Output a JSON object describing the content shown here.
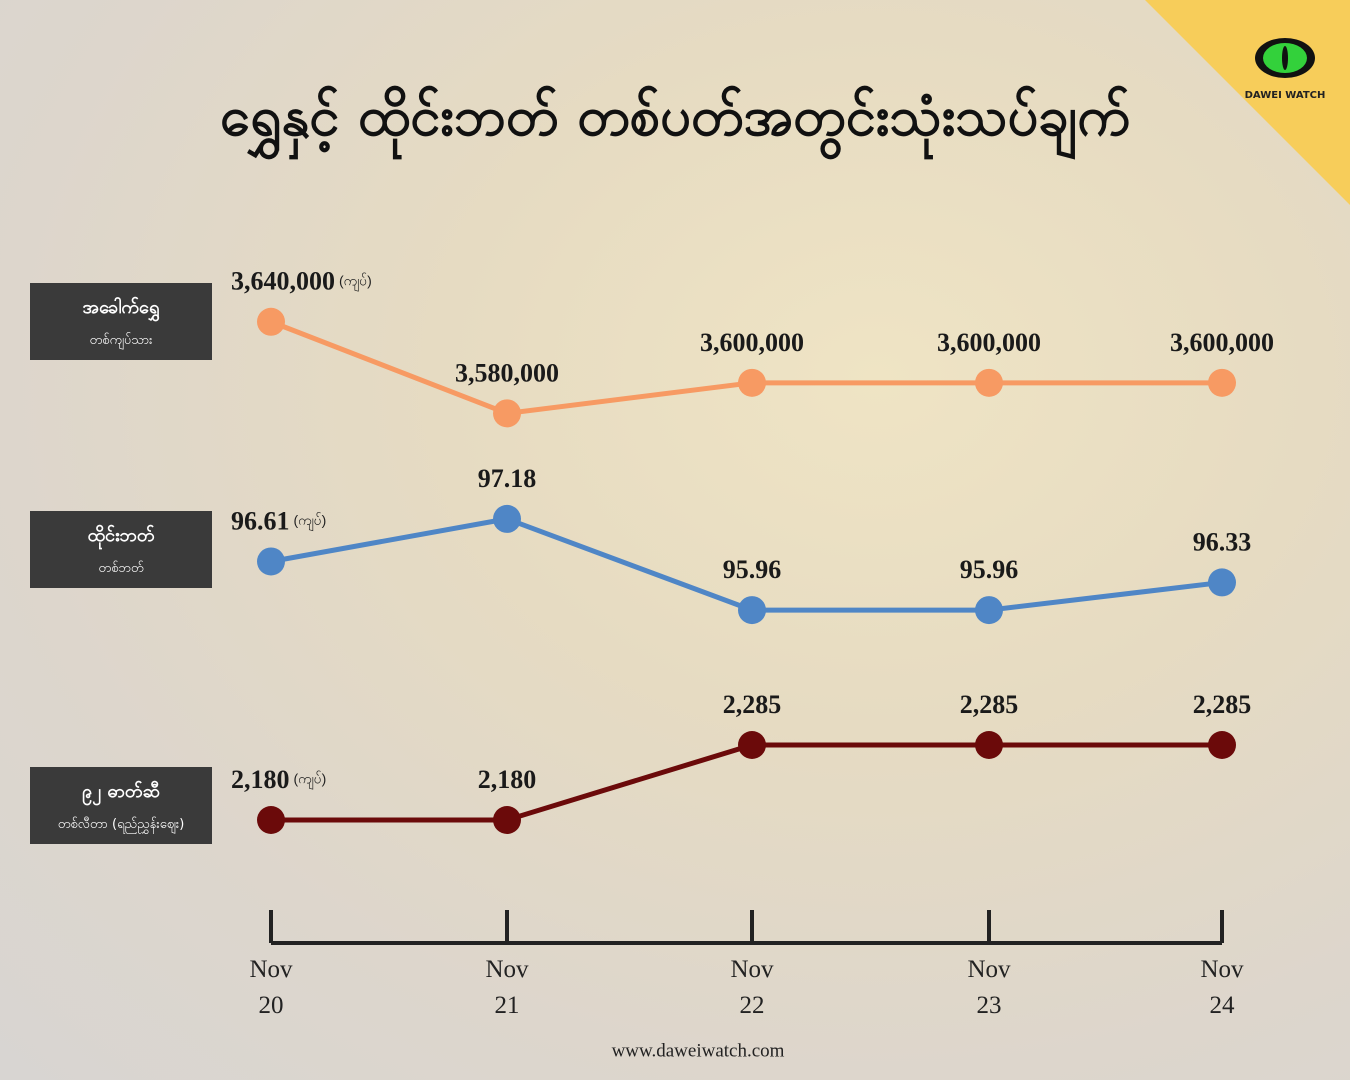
{
  "title": "ရွှေနှင့် ထိုင်းဘတ် တစ်ပတ်အတွင်းသုံးသပ်ချက်",
  "logo": "DAWEI WATCH",
  "footer": "www.daweiwatch.com",
  "chart_data": [
    {
      "type": "line",
      "name": "အခေါက်ရွှေ",
      "subtitle": "တစ်ကျပ်သား",
      "unit": "(ကျပ်)",
      "color": "#f79a63",
      "values": [
        3640000,
        3580000,
        3600000,
        3600000,
        3600000
      ],
      "value_labels": [
        "3,640,000",
        "3,580,000",
        "3,600,000",
        "3,600,000",
        "3,600,000"
      ],
      "ylim": [
        3556000,
        3687000
      ]
    },
    {
      "type": "line",
      "name": "ထိုင်းဘတ်",
      "subtitle": "တစ်ဘတ်",
      "unit": "(ကျပ်)",
      "color": "#4f86c6",
      "values": [
        96.61,
        97.18,
        95.96,
        95.96,
        96.33
      ],
      "ylim": [
        95.56,
        97.7
      ]
    },
    {
      "type": "line",
      "name": "၉၂ ဓာတ်ဆီ",
      "subtitle": "တစ်လီတာ (ရည်ညွှန်းဈေး)",
      "unit": "(ကျပ်)",
      "color": "#6b0a0a",
      "values": [
        2180,
        2180,
        2285,
        2285,
        2285
      ],
      "value_labels": [
        "2,180",
        "2,180",
        "2,285",
        "2,285",
        "2,285"
      ],
      "ylim": [
        2138,
        2348
      ],
      "categories": [
        "Nov 20",
        "Nov 21",
        "Nov 22",
        "Nov 23",
        "Nov 24"
      ]
    }
  ]
}
